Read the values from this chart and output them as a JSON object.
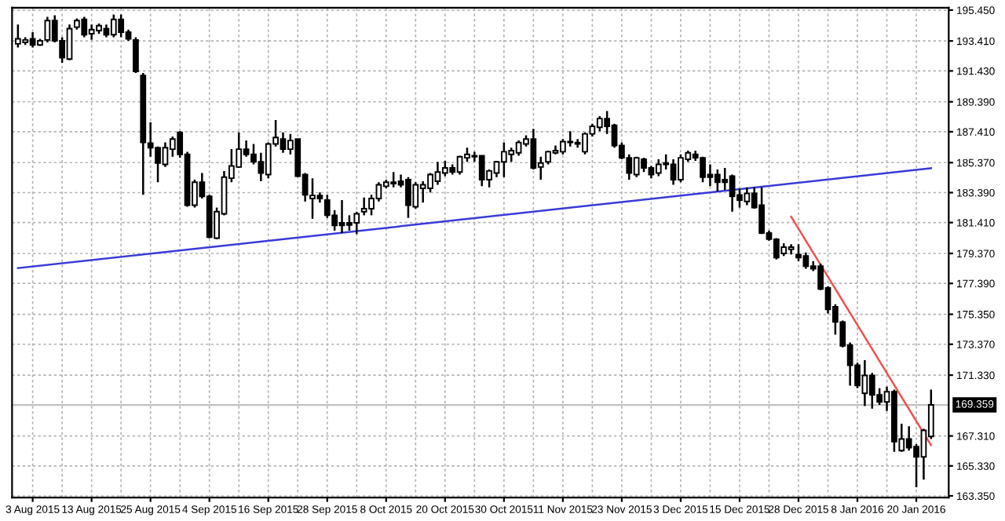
{
  "chart_data": {
    "type": "candlestick",
    "categories": [
      null,
      null,
      "3 Aug 2015",
      null,
      null,
      null,
      null,
      null,
      null,
      null,
      "13 Aug 2015",
      null,
      null,
      null,
      null,
      null,
      null,
      null,
      "25 Aug 2015",
      null,
      null,
      null,
      null,
      null,
      null,
      null,
      "4 Sep 2015",
      null,
      null,
      null,
      null,
      null,
      null,
      null,
      "16 Sep 2015",
      null,
      null,
      null,
      null,
      null,
      null,
      null,
      "28 Sep 2015",
      null,
      null,
      null,
      null,
      null,
      null,
      null,
      "8 Oct 2015",
      null,
      null,
      null,
      null,
      null,
      null,
      null,
      "20 Oct 2015",
      null,
      null,
      null,
      null,
      null,
      null,
      null,
      "30 Oct 2015",
      null,
      null,
      null,
      null,
      null,
      null,
      null,
      "11 Nov 2015",
      null,
      null,
      null,
      null,
      null,
      null,
      null,
      "23 Nov 2015",
      null,
      null,
      null,
      null,
      null,
      null,
      null,
      "3 Dec 2015",
      null,
      null,
      null,
      null,
      null,
      null,
      null,
      "15 Dec 2015",
      null,
      null,
      null,
      null,
      null,
      null,
      null,
      "28 Dec 2015",
      null,
      null,
      null,
      null,
      null,
      null,
      null,
      "8 Jan 2016",
      null,
      null,
      null,
      null,
      null,
      null,
      null,
      "20 Jan 2016",
      null,
      null
    ],
    "ohlc": [
      [
        193.22,
        194.49,
        192.98,
        193.55
      ],
      [
        193.32,
        193.65,
        193.15,
        193.48
      ],
      [
        193.55,
        193.99,
        192.98,
        193.15
      ],
      [
        193.15,
        193.55,
        193.08,
        193.42
      ],
      [
        193.48,
        195.0,
        193.32,
        194.76
      ],
      [
        194.76,
        195.1,
        193.32,
        193.42
      ],
      [
        193.42,
        193.65,
        191.97,
        192.31
      ],
      [
        192.21,
        194.49,
        192.14,
        194.22
      ],
      [
        194.32,
        194.9,
        194.16,
        194.76
      ],
      [
        194.83,
        195.0,
        193.65,
        193.82
      ],
      [
        193.89,
        194.49,
        193.48,
        194.16
      ],
      [
        194.09,
        194.56,
        193.89,
        194.42
      ],
      [
        194.22,
        194.49,
        193.65,
        193.82
      ],
      [
        193.82,
        195.16,
        193.65,
        194.83
      ],
      [
        194.83,
        195.16,
        193.65,
        193.99
      ],
      [
        193.99,
        194.16,
        193.42,
        193.55
      ],
      [
        193.48,
        193.65,
        191.3,
        191.4
      ],
      [
        191.13,
        191.3,
        183.24,
        186.7
      ],
      [
        186.66,
        188.04,
        185.76,
        186.36
      ],
      [
        186.36,
        186.43,
        184.08,
        185.35
      ],
      [
        185.25,
        186.7,
        185.08,
        186.36
      ],
      [
        186.26,
        187.1,
        185.76,
        186.93
      ],
      [
        187.37,
        187.44,
        185.69,
        185.92
      ],
      [
        185.92,
        186.09,
        182.46,
        182.56
      ],
      [
        182.56,
        184.24,
        182.4,
        184.08
      ],
      [
        184.08,
        184.68,
        183.0,
        183.14
      ],
      [
        183.14,
        183.24,
        180.38,
        180.45
      ],
      [
        180.38,
        182.4,
        180.31,
        182.13
      ],
      [
        181.99,
        184.82,
        181.89,
        184.41
      ],
      [
        184.34,
        186.26,
        184.08,
        185.15
      ],
      [
        185.08,
        187.37,
        185.02,
        186.26
      ],
      [
        186.26,
        186.83,
        185.76,
        185.92
      ],
      [
        185.92,
        186.6,
        185.25,
        185.42
      ],
      [
        185.42,
        186.02,
        184.14,
        184.68
      ],
      [
        184.58,
        186.7,
        184.34,
        186.6
      ],
      [
        186.6,
        188.18,
        186.43,
        187.03
      ],
      [
        186.93,
        187.37,
        186.02,
        186.26
      ],
      [
        186.26,
        187.27,
        185.92,
        186.83
      ],
      [
        186.93,
        186.93,
        184.41,
        184.48
      ],
      [
        184.58,
        184.68,
        182.8,
        183.24
      ],
      [
        183.0,
        184.34,
        181.66,
        183.2
      ],
      [
        183.2,
        183.4,
        182.73,
        183.0
      ],
      [
        182.9,
        183.24,
        181.72,
        181.89
      ],
      [
        181.89,
        182.23,
        180.88,
        181.22
      ],
      [
        181.39,
        182.9,
        180.72,
        181.22
      ],
      [
        181.39,
        181.89,
        180.88,
        181.25
      ],
      [
        181.39,
        182.13,
        180.65,
        181.99
      ],
      [
        182.13,
        183.07,
        181.89,
        182.33
      ],
      [
        182.33,
        183.24,
        181.89,
        183.0
      ],
      [
        183.0,
        184.08,
        182.8,
        183.91
      ],
      [
        183.81,
        184.24,
        183.67,
        184.08
      ],
      [
        183.98,
        184.75,
        183.74,
        184.08
      ],
      [
        184.14,
        184.58,
        183.74,
        183.91
      ],
      [
        184.24,
        184.41,
        181.72,
        182.56
      ],
      [
        182.46,
        184.08,
        182.33,
        183.91
      ],
      [
        183.67,
        184.14,
        182.73,
        183.91
      ],
      [
        183.67,
        184.68,
        183.4,
        184.58
      ],
      [
        184.14,
        185.42,
        183.91,
        184.75
      ],
      [
        184.68,
        185.49,
        184.48,
        185.02
      ],
      [
        185.02,
        185.25,
        184.58,
        184.75
      ],
      [
        184.75,
        185.82,
        184.58,
        185.76
      ],
      [
        185.69,
        186.36,
        185.42,
        185.92
      ],
      [
        185.82,
        186.09,
        185.42,
        185.76
      ],
      [
        185.82,
        185.82,
        183.81,
        184.24
      ],
      [
        184.24,
        184.92,
        183.74,
        184.82
      ],
      [
        184.68,
        185.49,
        184.41,
        185.42
      ],
      [
        185.42,
        186.7,
        184.41,
        186.09
      ],
      [
        185.92,
        186.36,
        185.42,
        186.16
      ],
      [
        186.02,
        186.83,
        185.82,
        186.7
      ],
      [
        186.6,
        187.17,
        186.43,
        186.93
      ],
      [
        186.93,
        187.6,
        184.92,
        185.02
      ],
      [
        185.08,
        185.76,
        184.24,
        185.35
      ],
      [
        185.42,
        186.16,
        185.25,
        186.09
      ],
      [
        186.02,
        186.5,
        185.92,
        186.16
      ],
      [
        186.09,
        186.93,
        185.92,
        186.76
      ],
      [
        186.76,
        187.44,
        186.43,
        186.7
      ],
      [
        186.7,
        186.93,
        186.36,
        186.6
      ],
      [
        186.09,
        187.37,
        185.92,
        187.27
      ],
      [
        187.27,
        187.94,
        187.1,
        187.77
      ],
      [
        187.7,
        188.44,
        187.44,
        188.28
      ],
      [
        188.28,
        188.78,
        187.27,
        187.77
      ],
      [
        187.84,
        187.94,
        186.36,
        186.5
      ],
      [
        186.5,
        186.7,
        185.59,
        185.69
      ],
      [
        185.69,
        185.92,
        184.24,
        184.68
      ],
      [
        184.58,
        185.76,
        184.41,
        185.69
      ],
      [
        185.59,
        185.69,
        184.75,
        185.02
      ],
      [
        185.02,
        185.15,
        184.34,
        184.58
      ],
      [
        184.68,
        185.59,
        184.48,
        185.25
      ],
      [
        185.25,
        185.92,
        184.92,
        185.35
      ],
      [
        185.25,
        185.59,
        183.91,
        184.24
      ],
      [
        184.24,
        185.92,
        184.08,
        185.69
      ],
      [
        185.59,
        186.16,
        185.42,
        186.02
      ],
      [
        185.92,
        186.16,
        185.49,
        185.69
      ],
      [
        185.69,
        185.76,
        184.08,
        184.41
      ],
      [
        184.58,
        185.25,
        183.81,
        184.41
      ],
      [
        184.58,
        184.92,
        183.47,
        184.08
      ],
      [
        184.24,
        185.02,
        183.57,
        184.08
      ],
      [
        184.48,
        184.58,
        182.13,
        183.14
      ],
      [
        183.24,
        183.67,
        182.4,
        182.9
      ],
      [
        182.8,
        183.74,
        182.56,
        183.34
      ],
      [
        183.34,
        183.74,
        182.33,
        182.4
      ],
      [
        182.56,
        183.74,
        180.65,
        180.72
      ],
      [
        180.72,
        180.88,
        180.21,
        180.31
      ],
      [
        180.31,
        180.38,
        178.97,
        179.1
      ],
      [
        179.37,
        180.04,
        179.2,
        179.78
      ],
      [
        179.64,
        179.98,
        179.3,
        179.78
      ],
      [
        179.3,
        179.98,
        178.87,
        179.1
      ],
      [
        179.2,
        179.44,
        178.36,
        178.53
      ],
      [
        178.53,
        178.87,
        178.2,
        178.36
      ],
      [
        178.53,
        178.7,
        176.95,
        177.02
      ],
      [
        177.09,
        177.19,
        175.41,
        175.68
      ],
      [
        175.84,
        176.01,
        174.0,
        174.84
      ],
      [
        174.84,
        174.94,
        173.16,
        173.26
      ],
      [
        173.32,
        173.49,
        170.64,
        171.98
      ],
      [
        171.98,
        172.15,
        170.47,
        170.64
      ],
      [
        170.13,
        172.32,
        169.29,
        171.31
      ],
      [
        171.31,
        171.48,
        169.12,
        170.03
      ],
      [
        170.03,
        170.47,
        169.36,
        169.56
      ],
      [
        169.56,
        170.57,
        168.96,
        170.23
      ],
      [
        170.23,
        170.37,
        166.27,
        166.94
      ],
      [
        166.34,
        168.12,
        166.27,
        167.11
      ],
      [
        167.11,
        167.95,
        166.34,
        166.54
      ],
      [
        166.6,
        166.77,
        163.92,
        165.93
      ],
      [
        165.93,
        167.78,
        164.42,
        167.68
      ],
      [
        167.28,
        170.37,
        167.11,
        169.359
      ]
    ],
    "colors": [
      "#ffffff",
      "#ffffff",
      "#000000",
      "#ffffff",
      "#ffffff",
      "#000000",
      "#000000",
      "#ffffff",
      "#ffffff",
      "#000000",
      "#ffffff",
      "#ffffff",
      "#000000",
      "#ffffff",
      "#000000",
      "#000000",
      "#000000",
      "#000000",
      "#000000",
      "#000000",
      "#ffffff",
      "#ffffff",
      "#000000",
      "#000000",
      "#ffffff",
      "#000000",
      "#000000",
      "#ffffff",
      "#ffffff",
      "#ffffff",
      "#ffffff",
      "#000000",
      "#000000",
      "#000000",
      "#ffffff",
      "#ffffff",
      "#000000",
      "#ffffff",
      "#000000",
      "#000000",
      "#ffffff",
      "#000000",
      "#000000",
      "#000000",
      "#000000",
      "#000000",
      "#ffffff",
      "#ffffff",
      "#ffffff",
      "#ffffff",
      "#ffffff",
      "#ffffff",
      "#000000",
      "#000000",
      "#ffffff",
      "#ffffff",
      "#ffffff",
      "#ffffff",
      "#ffffff",
      "#000000",
      "#ffffff",
      "#ffffff",
      "#000000",
      "#000000",
      "#ffffff",
      "#ffffff",
      "#ffffff",
      "#ffffff",
      "#ffffff",
      "#ffffff",
      "#000000",
      "#ffffff",
      "#ffffff",
      "#ffffff",
      "#ffffff",
      "#000000",
      "#000000",
      "#ffffff",
      "#ffffff",
      "#ffffff",
      "#000000",
      "#000000",
      "#000000",
      "#000000",
      "#ffffff",
      "#000000",
      "#000000",
      "#ffffff",
      "#ffffff",
      "#000000",
      "#ffffff",
      "#ffffff",
      "#000000",
      "#000000",
      "#000000",
      "#000000",
      "#000000",
      "#000000",
      "#000000",
      "#ffffff",
      "#000000",
      "#000000",
      "#000000",
      "#000000",
      "#ffffff",
      "#ffffff",
      "#000000",
      "#000000",
      "#000000",
      "#000000",
      "#000000",
      "#000000",
      "#000000",
      "#000000",
      "#000000",
      "#ffffff",
      "#000000",
      "#000000",
      "#ffffff",
      "#000000",
      "#ffffff",
      "#000000",
      "#000000",
      "#ffffff",
      "#ffffff"
    ],
    "series": [
      {
        "type": "line",
        "color": "#3a3ad8",
        "values": [
          178.4,
          null,
          null,
          null,
          null,
          null,
          null,
          null,
          null,
          null,
          null,
          null,
          null,
          null,
          null,
          null,
          null,
          null,
          null,
          null,
          null,
          null,
          null,
          null,
          null,
          null,
          null,
          null,
          null,
          null,
          null,
          null,
          null,
          null,
          null,
          null,
          null,
          null,
          null,
          null,
          null,
          null,
          null,
          null,
          null,
          null,
          null,
          null,
          null,
          null,
          null,
          null,
          null,
          null,
          null,
          null,
          null,
          null,
          null,
          null,
          null,
          null,
          null,
          null,
          null,
          null,
          null,
          null,
          null,
          null,
          null,
          null,
          null,
          null,
          null,
          null,
          null,
          null,
          null,
          null,
          null,
          null,
          null,
          null,
          null,
          null,
          null,
          null,
          null,
          null,
          null,
          null,
          null,
          null,
          null,
          null,
          null,
          null,
          null,
          null,
          null,
          null,
          null,
          null,
          null,
          null,
          null,
          null,
          null,
          null,
          null,
          null,
          null,
          null,
          null,
          null,
          null,
          null,
          null,
          null,
          null,
          null,
          null,
          null,
          185.0
        ]
      },
      {
        "type": "line",
        "color": "#f05050",
        "values": [
          null,
          null,
          null,
          null,
          null,
          null,
          null,
          null,
          null,
          null,
          null,
          null,
          null,
          null,
          null,
          null,
          null,
          null,
          null,
          null,
          null,
          null,
          null,
          null,
          null,
          null,
          null,
          null,
          null,
          null,
          null,
          null,
          null,
          null,
          null,
          null,
          null,
          null,
          null,
          null,
          null,
          null,
          null,
          null,
          null,
          null,
          null,
          null,
          null,
          null,
          null,
          null,
          null,
          null,
          null,
          null,
          null,
          null,
          null,
          null,
          null,
          null,
          null,
          null,
          null,
          null,
          null,
          null,
          null,
          null,
          null,
          null,
          null,
          null,
          null,
          null,
          null,
          null,
          null,
          null,
          null,
          null,
          null,
          null,
          null,
          null,
          null,
          null,
          null,
          null,
          null,
          null,
          null,
          null,
          null,
          null,
          null,
          null,
          null,
          null,
          null,
          null,
          null,
          null,
          null,
          181.8,
          null,
          null,
          null,
          null,
          null,
          null,
          null,
          null,
          null,
          null,
          null,
          null,
          null,
          null,
          null,
          null,
          null,
          null,
          166.7
        ]
      }
    ],
    "ref_lines": [
      {
        "axis": "y",
        "value": 169.359,
        "label": "169.359",
        "color": "#c0c0c0"
      }
    ],
    "ylim": [
      163.24,
      195.6
    ],
    "yticks": [
      {
        "value": 195.45,
        "label": "195.450"
      },
      {
        "value": 193.41,
        "label": "193.410"
      },
      {
        "value": 191.43,
        "label": "191.430"
      },
      {
        "value": 189.39,
        "label": "189.390"
      },
      {
        "value": 187.41,
        "label": "187.410"
      },
      {
        "value": 185.37,
        "label": "185.370"
      },
      {
        "value": 183.39,
        "label": "183.390"
      },
      {
        "value": 181.41,
        "label": "181.410"
      },
      {
        "value": 179.37,
        "label": "179.370"
      },
      {
        "value": 177.39,
        "label": "177.390"
      },
      {
        "value": 175.35,
        "label": "175.350"
      },
      {
        "value": 173.37,
        "label": "173.370"
      },
      {
        "value": 171.33,
        "label": "171.330"
      },
      {
        "value": 167.31,
        "label": "167.310"
      },
      {
        "value": 165.33,
        "label": "165.330"
      },
      {
        "value": 163.35,
        "label": "163.350"
      }
    ],
    "grid": true
  }
}
